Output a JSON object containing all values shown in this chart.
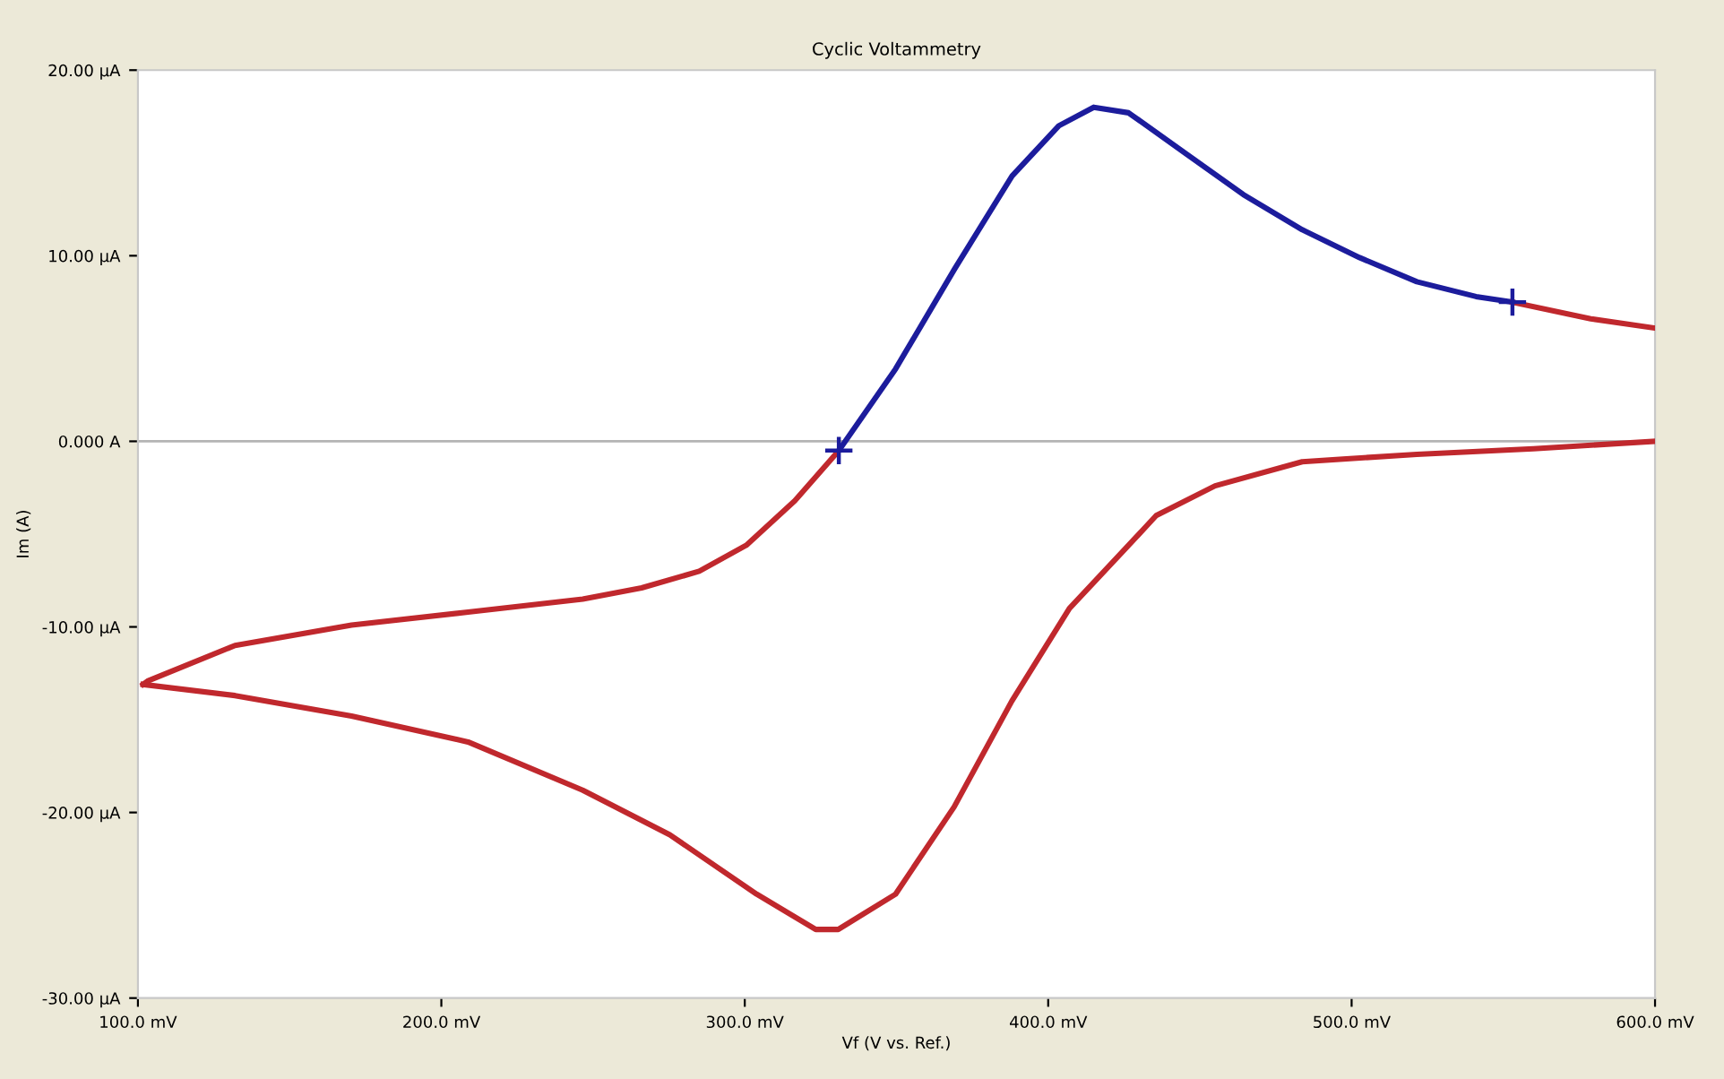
{
  "chart_data": {
    "type": "line",
    "title": "Cyclic Voltammetry",
    "xlabel": "Vf (V vs. Ref.)",
    "ylabel": "Im (A)",
    "xlim": [
      100,
      600
    ],
    "ylim": [
      -30,
      20
    ],
    "xticks": [
      {
        "value": 100,
        "label": "100.0 mV"
      },
      {
        "value": 200,
        "label": "200.0 mV"
      },
      {
        "value": 300,
        "label": "300.0 mV"
      },
      {
        "value": 400,
        "label": "400.0 mV"
      },
      {
        "value": 500,
        "label": "500.0 mV"
      },
      {
        "value": 600,
        "label": "600.0 mV"
      }
    ],
    "yticks": [
      {
        "value": -30,
        "label": "-30.00 µA"
      },
      {
        "value": -20,
        "label": "-20.00 µA"
      },
      {
        "value": -10,
        "label": "-10.00 µA"
      },
      {
        "value": 0,
        "label": "0.000 A"
      },
      {
        "value": 10,
        "label": "10.00 µA"
      },
      {
        "value": 20,
        "label": "20.00 µA"
      }
    ],
    "grid": false,
    "ref_lines": [
      {
        "axis": "y",
        "value": 0,
        "color": "#b4b4b4"
      }
    ],
    "series": [
      {
        "color": "#c0282d",
        "x": [
          101.7,
          103.4,
          132,
          170.4,
          208.8,
          246.6,
          266,
          285,
          300.5,
          316.5,
          331
        ],
        "values": [
          -13.1,
          -12.9,
          -11.0,
          -9.9,
          -9.2,
          -8.5,
          -7.9,
          -7.0,
          -5.6,
          -3.2,
          -0.5
        ]
      },
      {
        "color": "#1c1c9c",
        "x": [
          331,
          349.7,
          369.2,
          388.1,
          403.5,
          415.0,
          426.5,
          445.4,
          464.3,
          483.7,
          502.6,
          521.5,
          541.0,
          553
        ],
        "values": [
          -0.5,
          3.9,
          9.3,
          14.3,
          17.0,
          18.0,
          17.7,
          15.5,
          13.3,
          11.4,
          9.9,
          8.6,
          7.8,
          7.5
        ]
      },
      {
        "color": "#c0282d",
        "x": [
          553,
          578.8,
          600
        ],
        "values": [
          7.5,
          6.6,
          6.1
        ]
      },
      {
        "color": "#c0282d",
        "x": [
          600,
          559.9,
          521.5,
          483.7,
          455,
          435.6,
          426.5,
          407,
          388,
          369,
          349.7,
          330.8,
          323.4,
          303.9,
          275.3,
          246.6,
          208.8,
          170.4,
          132,
          101.7
        ],
        "values": [
          0.0,
          -0.4,
          -0.7,
          -1.1,
          -2.4,
          -4.0,
          -5.6,
          -9.0,
          -14.0,
          -19.7,
          -24.4,
          -26.3,
          -26.3,
          -24.4,
          -21.2,
          -18.8,
          -16.2,
          -14.8,
          -13.7,
          -13.1
        ]
      },
      {
        "type": "scatter",
        "marker": "cross",
        "color": "#1c1c9c",
        "x": [
          331,
          553
        ],
        "values": [
          -0.5,
          7.5
        ]
      }
    ]
  }
}
